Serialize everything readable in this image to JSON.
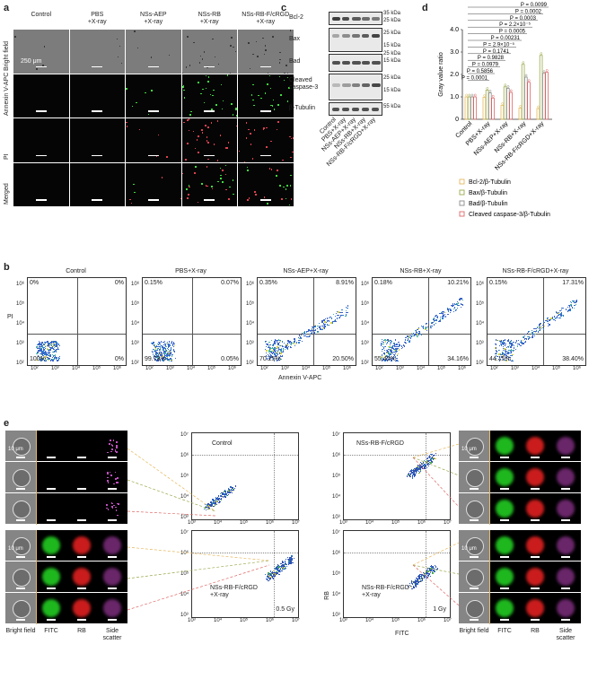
{
  "panels": {
    "a": "a",
    "b": "b",
    "c": "c",
    "d": "d",
    "e": "e"
  },
  "panel_a": {
    "columns": [
      "Control",
      "PBS\n+X-ray",
      "NSs-AEP\n+X-ray",
      "NSs-RB\n+X-ray",
      "NSs-RB-F/cRGD\n+X-ray"
    ],
    "rows": [
      "Bright field",
      "Annexin V-APC",
      "PI",
      "Merged"
    ],
    "scale": "250 μm"
  },
  "panel_b": {
    "titles": [
      "Control",
      "PBS+X-ray",
      "NSs-AEP+X-ray",
      "NSs-RB+X-ray",
      "NSs-RB-F/cRGD+X-ray"
    ],
    "quadrants": [
      {
        "ul": "0%",
        "ur": "0%",
        "ll": "100%",
        "lr": "0%"
      },
      {
        "ul": "0.15%",
        "ur": "0.07%",
        "ll": "99.73%",
        "lr": "0.05%"
      },
      {
        "ul": "0.35%",
        "ur": "8.91%",
        "ll": "70.25%",
        "lr": "20.50%"
      },
      {
        "ul": "0.18%",
        "ur": "10.21%",
        "ll": "55.45%",
        "lr": "34.16%"
      },
      {
        "ul": "0.15%",
        "ur": "17.31%",
        "ll": "44.15%",
        "lr": "38.40%"
      }
    ],
    "ylabel": "PI",
    "xlabel": "Annexin V-APC",
    "ticks": [
      "10²",
      "10³",
      "10⁴",
      "10⁵",
      "10⁶"
    ]
  },
  "panel_c": {
    "blots": [
      "Bcl-2",
      "Bax",
      "Bad",
      "Cleaved\ncaspase-3",
      "β-Tubulin"
    ],
    "markers": [
      "35 kDa",
      "25 kDa",
      "25 kDa",
      "15 kDa",
      "25 kDa",
      "15 kDa",
      "25 kDa",
      "15 kDa",
      "55 kDa"
    ],
    "lanes": [
      "Control",
      "PBS+X-ray",
      "NSs-AEP+X-ray",
      "NSs-RB+X-ray",
      "NSs-RB-F/cRGD+X-ray"
    ]
  },
  "chart_data": {
    "type": "bar",
    "categories": [
      "Control",
      "PBS+X-ray",
      "NSs-AEP+X-ray",
      "NSs-RB+X-ray",
      "NSs-RB-F/cRGD+X-ray"
    ],
    "series": [
      {
        "name": "Bcl-2/β-Tubulin",
        "values": [
          1.0,
          0.98,
          0.62,
          0.5,
          0.48
        ],
        "color": "#e6b85c"
      },
      {
        "name": "Bax/β-Tubulin",
        "values": [
          1.0,
          1.3,
          1.45,
          2.45,
          2.85
        ],
        "color": "#9aa84a"
      },
      {
        "name": "Bad/β-Tubulin",
        "values": [
          1.0,
          1.18,
          1.38,
          1.88,
          2.05
        ],
        "color": "#8a8a8a"
      },
      {
        "name": "Cleaved caspase-3/β-Tubulin",
        "values": [
          1.0,
          0.95,
          1.2,
          1.65,
          2.1
        ],
        "color": "#e06666"
      }
    ],
    "ylabel": "Gray value ratio",
    "ylim": [
      0,
      4.0
    ],
    "yticks": [
      "0",
      "1.0",
      "2.0",
      "3.0",
      "4.0"
    ],
    "pvalues": [
      "P = 0.0099",
      "P = 0.0002",
      "P = 0.0003",
      "P = 2.2×10⁻⁵",
      "P = 0.0005",
      "P = 0.00231",
      "P = 2.9×10⁻⁵",
      "P = 0.1741",
      "P = 0.9828",
      "P = 0.0979",
      "P = 0.5856",
      "P = 0.0001"
    ]
  },
  "panel_e": {
    "channels": [
      "Bright field",
      "FITC",
      "RB",
      "Side scatter"
    ],
    "scale": "10 μm",
    "plots": [
      {
        "title": "Control",
        "note": "",
        "dose": ""
      },
      {
        "title": "NSs-RB-F/cRGD",
        "note": "",
        "dose": ""
      },
      {
        "title": "NSs-RB-F/cRGD\n+X-ray",
        "note": "",
        "dose": "0.5 Gy"
      },
      {
        "title": "NSs-RB-F/cRGD\n+X-ray",
        "note": "",
        "dose": "1 Gy"
      }
    ],
    "xticks": [
      "10³",
      "10⁴",
      "10⁵",
      "10⁶",
      "10⁷"
    ],
    "yticks": [
      "10³",
      "10⁴",
      "10⁵",
      "10⁶",
      "10⁷"
    ],
    "xlabel": "FITC",
    "ylabel": "RB"
  }
}
